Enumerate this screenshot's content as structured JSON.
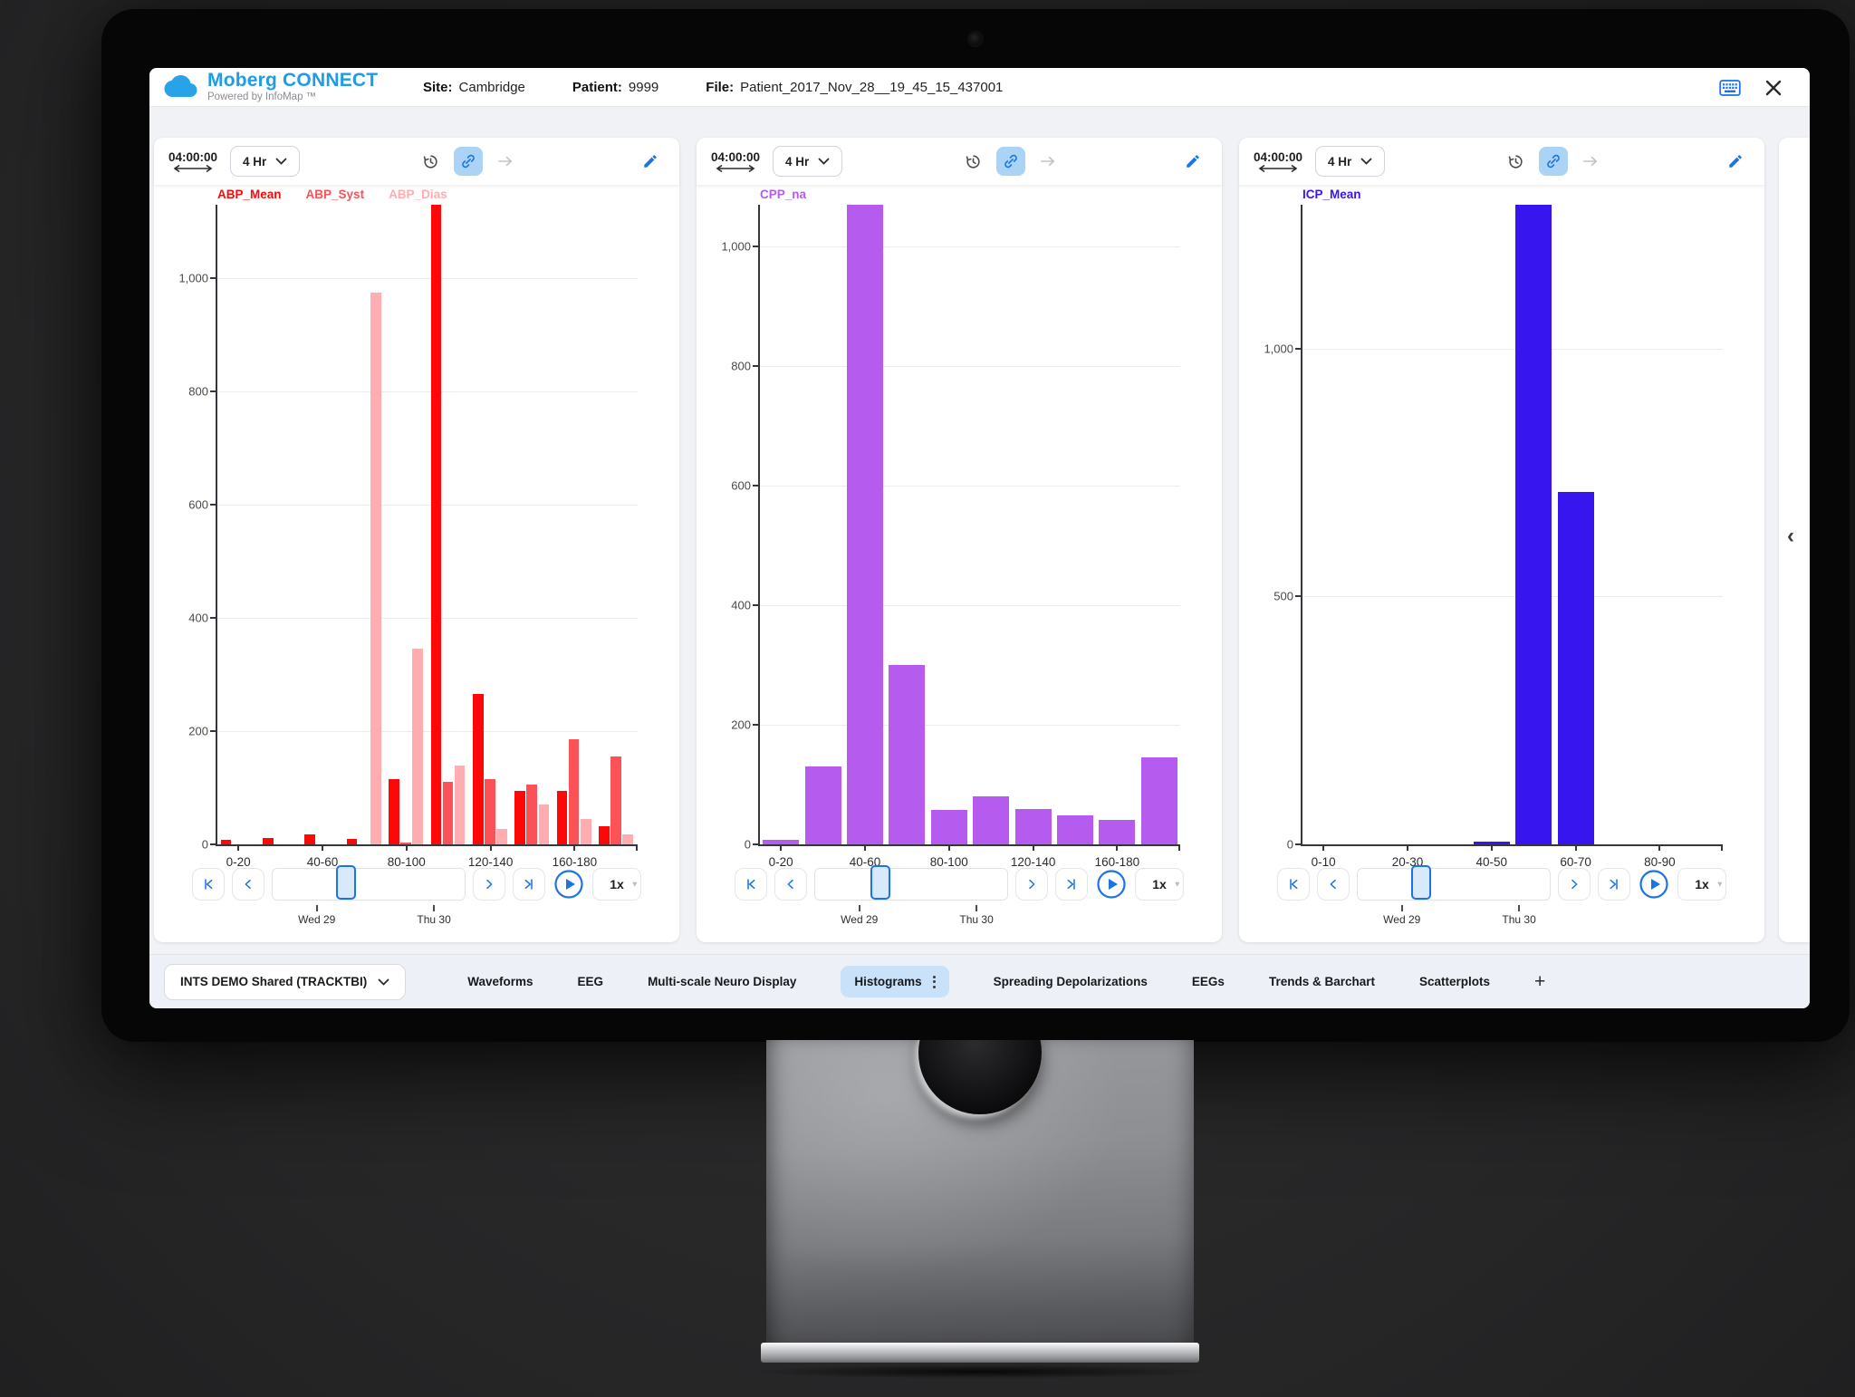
{
  "window": {
    "logo": {
      "brand": "Moberg CONNECT",
      "powered_by": "Powered by InfoMap ™"
    },
    "header": {
      "site_label": "Site:",
      "site_value": "Cambridge",
      "patient_label": "Patient:",
      "patient_value": "9999",
      "file_label": "File:",
      "file_value": "Patient_2017_Nov_28__19_45_15_437001"
    },
    "colors": {
      "brand_blue": "#1e9ce8",
      "icon_blue": "#1a73e8",
      "link_pill_bg": "#abd3f5",
      "active_tab_bg": "#c9e2f9",
      "abp_mean": "#fc0808",
      "abp_syst": "#fa5257",
      "abp_dias": "#ffadb1",
      "cpp": "#b55cef",
      "icp": "#3715ee"
    },
    "icons": {
      "cloud-icon": "cloud",
      "keyboard-icon": "keyboard",
      "close-icon": "×",
      "clock-history-icon": "clock-with-arrow",
      "link-icon": "chain",
      "arrow-right-icon": "→",
      "pencil-icon": "edit-pencil",
      "resize-horizontal-icon": "↔",
      "chevron-down-icon": "⌄",
      "skip-start-icon": "|<",
      "step-back-icon": "<",
      "step-forward-icon": ">",
      "skip-end-icon": ">|",
      "play-icon": "▶",
      "kebab-icon": "⋮",
      "plus-icon": "+",
      "collapse-chevron-icon": "‹"
    }
  },
  "panels": [
    {
      "time": "04:00:00",
      "range": "4 Hr",
      "speed": "1x",
      "timeline_start": "Wed 29",
      "timeline_end": "Thu 30",
      "slider_pct": 38
    },
    {
      "time": "04:00:00",
      "range": "4 Hr",
      "speed": "1x",
      "timeline_start": "Wed 29",
      "timeline_end": "Thu 30",
      "slider_pct": 34
    },
    {
      "time": "04:00:00",
      "range": "4 Hr",
      "speed": "1x",
      "timeline_start": "Wed 29",
      "timeline_end": "Thu 30",
      "slider_pct": 33
    }
  ],
  "chart_data": [
    {
      "type": "bar",
      "title": "ABP histogram",
      "categories": [
        "0-20",
        "20-40",
        "40-60",
        "60-80",
        "80-100",
        "100-120",
        "120-140",
        "140-160",
        "160-180",
        "180-200"
      ],
      "x_labeled_indexes": [
        0,
        2,
        4,
        6,
        8
      ],
      "series": [
        {
          "name": "ABP_Mean",
          "values": [
            8,
            12,
            18,
            10,
            115,
            1130,
            265,
            95,
            95,
            32
          ]
        },
        {
          "name": "ABP_Syst",
          "values": [
            0,
            0,
            0,
            0,
            3,
            110,
            115,
            105,
            185,
            155
          ]
        },
        {
          "name": "ABP_Dias",
          "values": [
            0,
            0,
            0,
            975,
            345,
            140,
            28,
            70,
            45,
            18
          ]
        }
      ],
      "colors": [
        "#fc0808",
        "#fa5257",
        "#ffadb1"
      ],
      "ylim": [
        0,
        1130
      ],
      "yticks": [
        0,
        200,
        400,
        600,
        800,
        1000
      ],
      "ytick_labels": [
        "0",
        "200",
        "400",
        "600",
        "800",
        "1,000"
      ],
      "grid": true,
      "legend_position": "top",
      "note": "tallest ABP_Mean bar clipped at plot top"
    },
    {
      "type": "bar",
      "title": "CPP histogram",
      "categories": [
        "0-20",
        "20-40",
        "40-60",
        "60-80",
        "80-100",
        "100-120",
        "120-140",
        "140-160",
        "160-180",
        "180-200"
      ],
      "x_labeled_indexes": [
        0,
        2,
        4,
        6,
        8
      ],
      "series": [
        {
          "name": "CPP_na",
          "values": [
            8,
            130,
            1070,
            300,
            57,
            80,
            59,
            49,
            41,
            145
          ]
        }
      ],
      "colors": [
        "#b55cef"
      ],
      "ylim": [
        0,
        1070
      ],
      "yticks": [
        0,
        200,
        400,
        600,
        800,
        1000
      ],
      "ytick_labels": [
        "0",
        "200",
        "400",
        "600",
        "800",
        "1,000"
      ],
      "grid": true,
      "legend_position": "top",
      "note": "40-60 bar clipped at plot top"
    },
    {
      "type": "bar",
      "title": "ICP histogram",
      "categories": [
        "0-10",
        "10-20",
        "20-30",
        "30-40",
        "40-50",
        "50-60",
        "60-70",
        "70-80",
        "80-90",
        "90-100"
      ],
      "x_labeled_indexes": [
        0,
        2,
        4,
        6,
        8
      ],
      "series": [
        {
          "name": "ICP_Mean",
          "values": [
            0,
            0,
            0,
            0,
            6,
            1290,
            710,
            0,
            0,
            0
          ]
        }
      ],
      "colors": [
        "#3715ee"
      ],
      "ylim": [
        0,
        1290
      ],
      "yticks": [
        0,
        500,
        1000
      ],
      "ytick_labels": [
        "0",
        "500",
        "1,000"
      ],
      "grid": true,
      "legend_position": "top",
      "note": "50-60 bar clipped at plot top"
    }
  ],
  "tabbar": {
    "workspace": "INTS DEMO Shared (TRACKTBI)",
    "tabs": [
      "Waveforms",
      "EEG",
      "Multi-scale Neuro Display",
      "Histograms",
      "Spreading Depolarizations",
      "EEGs",
      "Trends & Barchart",
      "Scatterplots"
    ],
    "active_tab": "Histograms",
    "add_label": "+"
  },
  "side": {
    "collapse_glyph": "‹"
  }
}
